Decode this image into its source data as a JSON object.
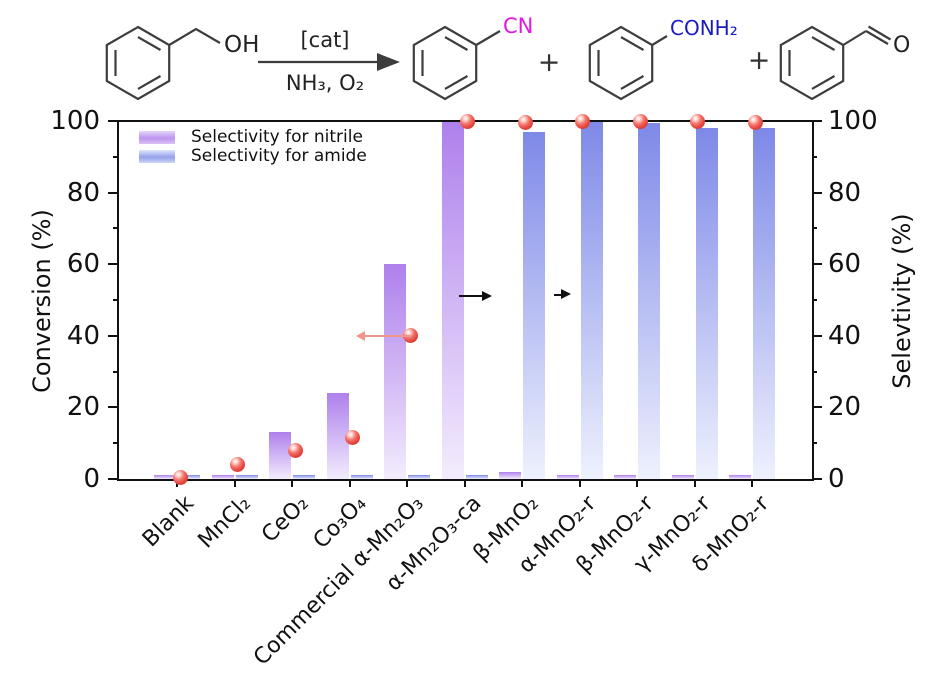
{
  "reaction_scheme": {
    "reactant_label": "OH",
    "arrow_top": "[cat]",
    "arrow_bottom": "NH₃, O₂",
    "plus": "+",
    "product_nitrile_label": "CN",
    "product_nitrile_color": "#e318e3",
    "product_amide_label": "CONH₂",
    "product_amide_color": "#1a1ac4",
    "product_aldehyde_label": "O",
    "product_aldehyde_color": "#222222"
  },
  "chart_data": {
    "type": "bar",
    "title": "",
    "categories": [
      "Blank",
      "MnCl₂",
      "CeO₂",
      "Co₃O₄",
      "Commercial α-Mn₂O₃",
      "α-Mn₂O₃-ca",
      "β-MnO₂",
      "α-MnO₂-r",
      "β-MnO₂-r",
      "γ-MnO₂-r",
      "δ-MnO₂-r"
    ],
    "series": [
      {
        "name": "Selectivity for nitrile",
        "type": "bar",
        "axis": "right",
        "values": [
          1,
          1,
          13,
          24,
          60,
          100,
          2,
          1,
          1,
          1,
          1
        ],
        "color_top": "#ae80ec",
        "color_bottom": "#f3ecfd"
      },
      {
        "name": "Selectivity for amide",
        "type": "bar",
        "axis": "right",
        "values": [
          1,
          1,
          1,
          1,
          1,
          1,
          97,
          100,
          99.5,
          98,
          98
        ],
        "color_top": "#7e89e8",
        "color_bottom": "#eef1fd"
      },
      {
        "name": "Conversion",
        "type": "scatter",
        "axis": "left",
        "values": [
          0.5,
          4,
          8,
          11.5,
          40,
          100,
          99.5,
          100,
          100,
          100,
          99.5
        ],
        "color": "#e74840"
      }
    ],
    "left_axis": {
      "label": "Conversion (%)",
      "min": 0,
      "max": 100,
      "major_ticks": [
        0,
        20,
        40,
        60,
        80,
        100
      ],
      "minor_step": 10
    },
    "right_axis": {
      "label": "Selevtivity (%)",
      "min": 0,
      "max": 100,
      "major_ticks": [
        0,
        20,
        40,
        60,
        80,
        100
      ],
      "minor_step": 10
    },
    "legend": [
      {
        "label": "Selectivity for nitrile",
        "swatch": "purple-gradient"
      },
      {
        "label": "Selectivity for amide",
        "swatch": "blue-gradient"
      }
    ],
    "legend_position": "top-left-inside",
    "grid": false,
    "annotations": [
      {
        "type": "series-axis-arrow",
        "direction": "left",
        "color": "#ef968c",
        "category_index": 4,
        "x_offset": 3,
        "y_value": 40,
        "length": 46
      },
      {
        "type": "series-axis-arrow",
        "direction": "right",
        "color": "#111111",
        "category_index": 5,
        "x_offset": -6,
        "y_value": 51,
        "length": 30
      },
      {
        "type": "series-axis-arrow",
        "direction": "right",
        "color": "#111111",
        "category_index": 6,
        "x_offset": 32,
        "y_value": 51.5,
        "length": 14
      }
    ]
  }
}
